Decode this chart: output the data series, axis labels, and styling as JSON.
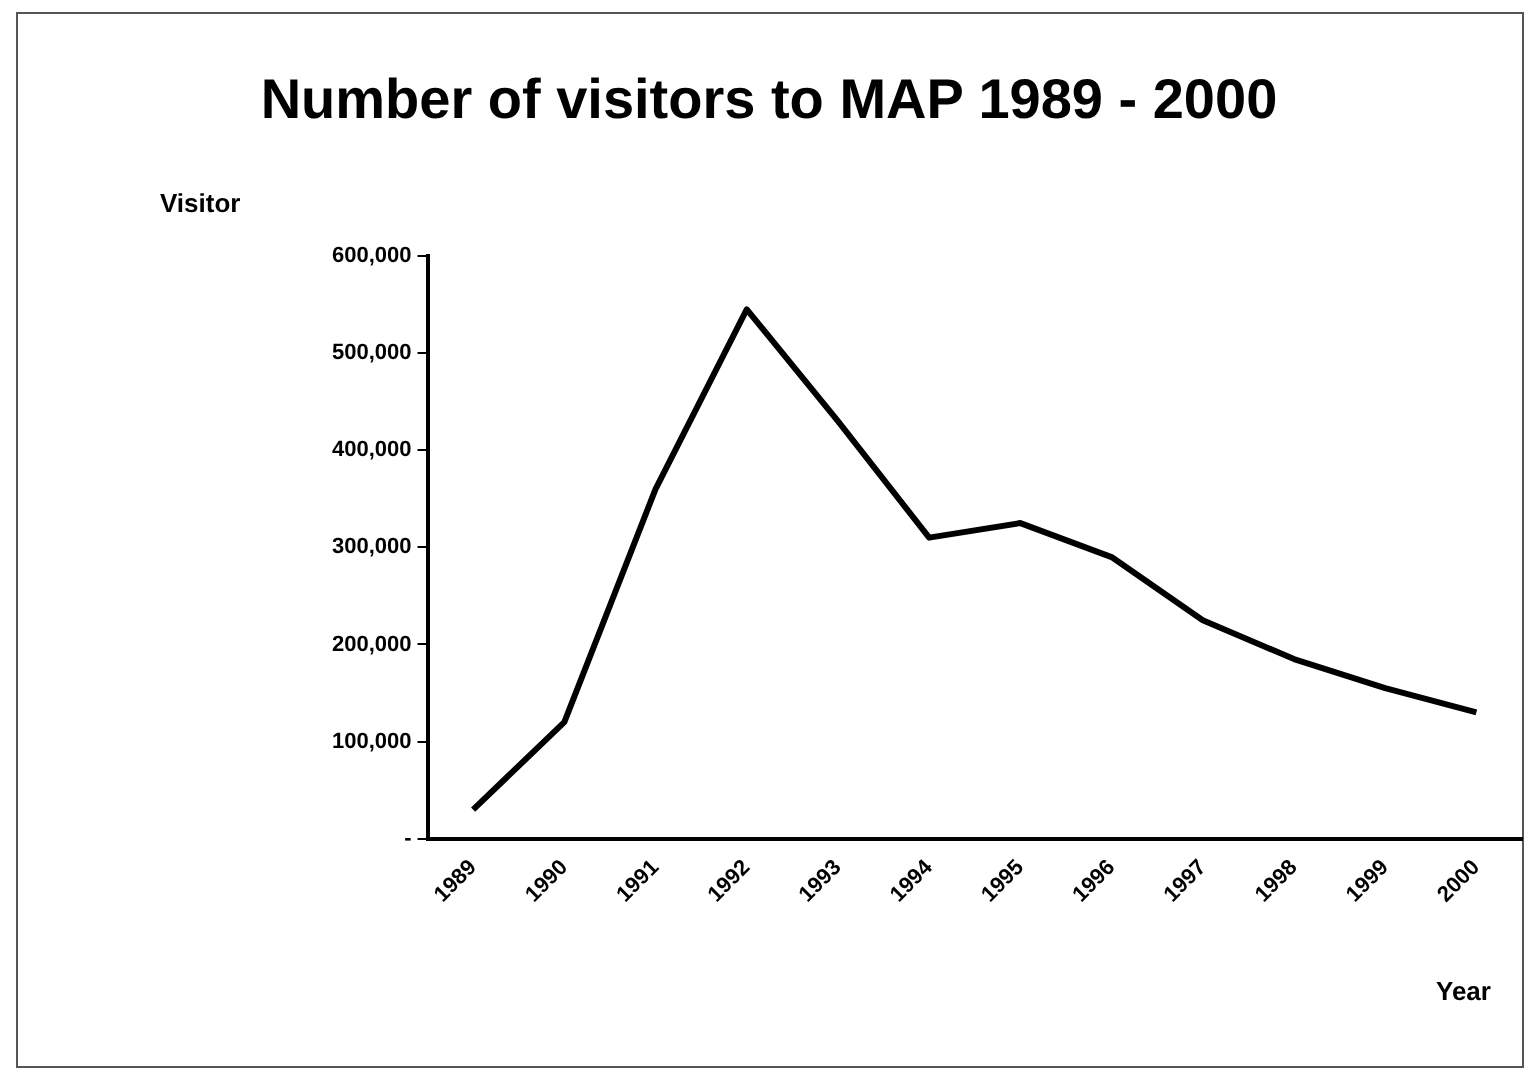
{
  "chart_data": {
    "type": "line",
    "title": "Number of visitors to MAP 1989 - 2000",
    "xlabel": "Year",
    "ylabel": "Visitor",
    "categories": [
      "1989",
      "1990",
      "1991",
      "1992",
      "1993",
      "1994",
      "1995",
      "1996",
      "1997",
      "1998",
      "1999",
      "2000"
    ],
    "series": [
      {
        "color": "#000000",
        "values": [
          30000,
          120000,
          360000,
          545000,
          430000,
          310000,
          325000,
          290000,
          225000,
          185000,
          155000,
          130000
        ]
      }
    ],
    "ylim": [
      0,
      600000
    ],
    "yticks": [
      {
        "value": 0,
        "label": "-"
      },
      {
        "value": 100000,
        "label": "100,000"
      },
      {
        "value": 200000,
        "label": "200,000"
      },
      {
        "value": 300000,
        "label": "300,000"
      },
      {
        "value": 400000,
        "label": "400,000"
      },
      {
        "value": 500000,
        "label": "500,000"
      },
      {
        "value": 600000,
        "label": "600,000"
      }
    ],
    "grid": false,
    "legend": false,
    "marker": "none",
    "line_style": "solid"
  }
}
